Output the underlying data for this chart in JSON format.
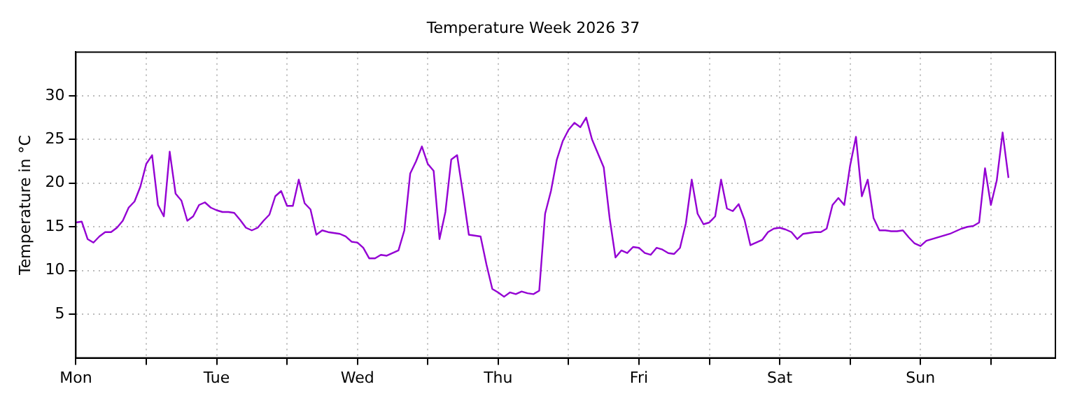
{
  "chart_data": {
    "type": "line",
    "title": "Temperature Week 2026 37",
    "ylabel": "Temperature in °C",
    "categories": [
      "Mon",
      null,
      null,
      null,
      null,
      null,
      null,
      null,
      null,
      null,
      null,
      null,
      null,
      null,
      null,
      null,
      null,
      null,
      null,
      null,
      null,
      null,
      null,
      null,
      "Tue",
      null,
      null,
      null,
      null,
      null,
      null,
      null,
      null,
      null,
      null,
      null,
      null,
      null,
      null,
      null,
      null,
      null,
      null,
      null,
      null,
      null,
      null,
      null,
      "Wed",
      null,
      null,
      null,
      null,
      null,
      null,
      null,
      null,
      null,
      null,
      null,
      null,
      null,
      null,
      null,
      null,
      null,
      null,
      null,
      null,
      null,
      null,
      null,
      "Thu",
      null,
      null,
      null,
      null,
      null,
      null,
      null,
      null,
      null,
      null,
      null,
      null,
      null,
      null,
      null,
      null,
      null,
      null,
      null,
      null,
      null,
      null,
      null,
      "Fri",
      null,
      null,
      null,
      null,
      null,
      null,
      null,
      null,
      null,
      null,
      null,
      null,
      null,
      null,
      null,
      null,
      null,
      null,
      null,
      null,
      null,
      null,
      null,
      "Sat",
      null,
      null,
      null,
      null,
      null,
      null,
      null,
      null,
      null,
      null,
      null,
      null,
      null,
      null,
      null,
      null,
      null,
      null,
      null,
      null,
      null,
      null,
      null,
      "Sun",
      null,
      null,
      null,
      null,
      null,
      null,
      null,
      null,
      null,
      null,
      null,
      null,
      null,
      null,
      null,
      null,
      null,
      null,
      null,
      null,
      null,
      null,
      null
    ],
    "values": [
      15.5,
      15.6,
      13.6,
      13.2,
      13.9,
      14.4,
      14.4,
      14.9,
      15.7,
      17.2,
      17.9,
      19.6,
      22.2,
      23.2,
      17.5,
      16.2,
      23.6,
      18.8,
      18,
      15.7,
      16.2,
      17.5,
      17.8,
      17.2,
      16.9,
      16.7,
      16.7,
      16.6,
      15.8,
      14.9,
      14.6,
      14.9,
      15.7,
      16.4,
      18.5,
      19.1,
      17.4,
      17.4,
      20.4,
      17.7,
      17,
      14.1,
      14.6,
      14.4,
      14.3,
      14.2,
      13.9,
      13.3,
      13.2,
      12.6,
      11.4,
      11.4,
      11.8,
      11.7,
      12,
      12.3,
      14.6,
      21.1,
      22.5,
      24.2,
      22.2,
      21.4,
      13.6,
      16.7,
      22.7,
      23.2,
      18.8,
      14.1,
      14,
      13.9,
      10.7,
      7.9,
      7.5,
      7,
      7.5,
      7.3,
      7.6,
      7.4,
      7.3,
      7.7,
      16.5,
      19.1,
      22.7,
      24.8,
      26.1,
      26.9,
      26.4,
      27.5,
      25,
      23.4,
      21.8,
      16,
      11.5,
      12.3,
      12,
      12.7,
      12.6,
      12,
      11.8,
      12.6,
      12.4,
      12,
      11.9,
      12.6,
      15.4,
      20.4,
      16.5,
      15.3,
      15.5,
      16.2,
      20.4,
      17.1,
      16.8,
      17.6,
      15.8,
      12.9,
      13.2,
      13.5,
      14.4,
      14.8,
      14.9,
      14.7,
      14.4,
      13.6,
      14.2,
      14.3,
      14.4,
      14.4,
      14.8,
      17.5,
      18.3,
      17.5,
      22,
      25.3,
      18.5,
      20.4,
      16,
      14.6,
      14.6,
      14.5,
      14.5,
      14.6,
      13.8,
      13.1,
      12.8,
      13.4,
      13.6,
      13.8,
      14,
      14.2,
      14.5,
      14.8,
      15,
      15.1,
      15.5,
      21.7,
      17.5,
      20.3,
      25.8,
      20.6,
      null,
      null,
      null,
      null,
      null,
      null,
      null,
      null
    ],
    "color": "#9400d3",
    "ylim": [
      0,
      35
    ],
    "yticks": [
      5,
      10,
      15,
      20,
      25,
      30
    ],
    "grid": true
  }
}
